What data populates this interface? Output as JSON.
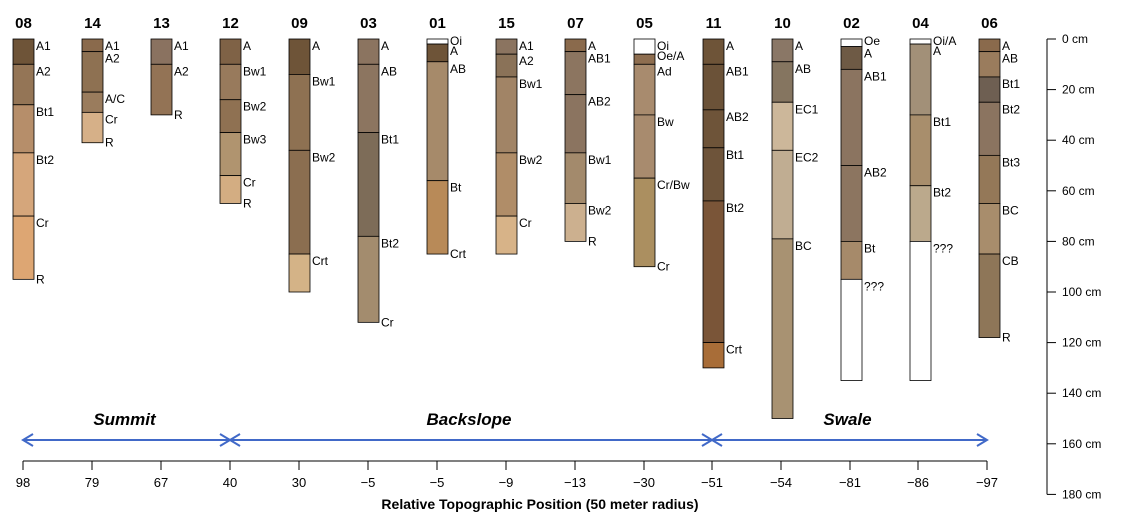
{
  "depth_axis": {
    "unit": "cm",
    "ticks": [
      {
        "value": 0,
        "label": "0 cm"
      },
      {
        "value": 20,
        "label": "20 cm"
      },
      {
        "value": 40,
        "label": "40 cm"
      },
      {
        "value": 60,
        "label": "60 cm"
      },
      {
        "value": 80,
        "label": "80 cm"
      },
      {
        "value": 100,
        "label": "100 cm"
      },
      {
        "value": 120,
        "label": "120 cm"
      },
      {
        "value": 140,
        "label": "140 cm"
      },
      {
        "value": 160,
        "label": "160 cm"
      },
      {
        "value": 180,
        "label": "180 cm"
      }
    ]
  },
  "x_axis": {
    "label": "Relative Topographic Position (50 meter radius)",
    "ticks": [
      "98",
      "79",
      "67",
      "40",
      "30",
      "−5",
      "−5",
      "−9",
      "−13",
      "−30",
      "−51",
      "−54",
      "−81",
      "−86",
      "−97"
    ]
  },
  "zones": [
    {
      "label": "Summit",
      "from": 0,
      "to": 3
    },
    {
      "label": "Backslope",
      "from": 3,
      "to": 10
    },
    {
      "label": "Swale",
      "from": 10,
      "to": 14
    }
  ],
  "colors": {
    "arrow": "#4169c8",
    "outline": "#000000"
  },
  "profiles": [
    {
      "id": "08",
      "bottom_label": "R",
      "horizons": [
        {
          "name": "A1",
          "top": 0,
          "bottom": 10,
          "color": "#6e5438"
        },
        {
          "name": "A2",
          "top": 10,
          "bottom": 26,
          "color": "#947556"
        },
        {
          "name": "Bt1",
          "top": 26,
          "bottom": 45,
          "color": "#b68e6a"
        },
        {
          "name": "Bt2",
          "top": 45,
          "bottom": 70,
          "color": "#d5a67b"
        },
        {
          "name": "Cr",
          "top": 70,
          "bottom": 95,
          "color": "#dda673"
        }
      ]
    },
    {
      "id": "14",
      "bottom_label": "R",
      "horizons": [
        {
          "name": "A1",
          "top": 0,
          "bottom": 5,
          "color": "#8a6a4c"
        },
        {
          "name": "A2",
          "top": 5,
          "bottom": 21,
          "color": "#8e7152"
        },
        {
          "name": "A/C",
          "top": 21,
          "bottom": 29,
          "color": "#9a7c5d"
        },
        {
          "name": "Cr",
          "top": 29,
          "bottom": 41,
          "color": "#d6b088"
        }
      ]
    },
    {
      "id": "13",
      "bottom_label": "R",
      "horizons": [
        {
          "name": "A1",
          "top": 0,
          "bottom": 10,
          "color": "#8a7260"
        },
        {
          "name": "A2",
          "top": 10,
          "bottom": 30,
          "color": "#937355"
        }
      ]
    },
    {
      "id": "12",
      "bottom_label": "R",
      "horizons": [
        {
          "name": "A",
          "top": 0,
          "bottom": 10,
          "color": "#7f6246"
        },
        {
          "name": "Bw1",
          "top": 10,
          "bottom": 24,
          "color": "#987a5c"
        },
        {
          "name": "Bw2",
          "top": 24,
          "bottom": 37,
          "color": "#8f7152"
        },
        {
          "name": "Bw3",
          "top": 37,
          "bottom": 54,
          "color": "#b0946f"
        },
        {
          "name": "Cr",
          "top": 54,
          "bottom": 65,
          "color": "#d3ad82"
        }
      ]
    },
    {
      "id": "09",
      "bottom_label": "",
      "horizons": [
        {
          "name": "A",
          "top": 0,
          "bottom": 14,
          "color": "#6e5438"
        },
        {
          "name": "Bw1",
          "top": 14,
          "bottom": 44,
          "color": "#8e7152"
        },
        {
          "name": "Bw2",
          "top": 44,
          "bottom": 85,
          "color": "#8b6e50"
        },
        {
          "name": "Crt",
          "top": 85,
          "bottom": 100,
          "color": "#d4b387"
        }
      ]
    },
    {
      "id": "03",
      "bottom_label": "Cr",
      "horizons": [
        {
          "name": "A",
          "top": 0,
          "bottom": 10,
          "color": "#8b7460"
        },
        {
          "name": "AB",
          "top": 10,
          "bottom": 37,
          "color": "#8c7560"
        },
        {
          "name": "Bt1",
          "top": 37,
          "bottom": 78,
          "color": "#7d6c58"
        },
        {
          "name": "Bt2",
          "top": 78,
          "bottom": 112,
          "color": "#a38c6e"
        }
      ]
    },
    {
      "id": "01",
      "bottom_label": "Crt",
      "horizons": [
        {
          "name": "Oi",
          "top": 0,
          "bottom": 2,
          "color": "#ffffff"
        },
        {
          "name": "A",
          "top": 2,
          "bottom": 9,
          "color": "#6e5438"
        },
        {
          "name": "AB",
          "top": 9,
          "bottom": 56,
          "color": "#a68a6a"
        },
        {
          "name": "Bt",
          "top": 56,
          "bottom": 85,
          "color": "#b88a58"
        }
      ]
    },
    {
      "id": "15",
      "bottom_label": "",
      "horizons": [
        {
          "name": "A1",
          "top": 0,
          "bottom": 6,
          "color": "#8b7460"
        },
        {
          "name": "A2",
          "top": 6,
          "bottom": 15,
          "color": "#8a7258"
        },
        {
          "name": "Bw1",
          "top": 15,
          "bottom": 45,
          "color": "#a18466"
        },
        {
          "name": "Bw2",
          "top": 45,
          "bottom": 70,
          "color": "#b08d68"
        },
        {
          "name": "Cr",
          "top": 70,
          "bottom": 85,
          "color": "#d7b388"
        }
      ]
    },
    {
      "id": "07",
      "bottom_label": "R",
      "horizons": [
        {
          "name": "A",
          "top": 0,
          "bottom": 5,
          "color": "#8a6a4c"
        },
        {
          "name": "AB1",
          "top": 5,
          "bottom": 22,
          "color": "#8c7560"
        },
        {
          "name": "AB2",
          "top": 22,
          "bottom": 45,
          "color": "#8b7460"
        },
        {
          "name": "Bw1",
          "top": 45,
          "bottom": 65,
          "color": "#a38a6c"
        },
        {
          "name": "Bw2",
          "top": 65,
          "bottom": 80,
          "color": "#ccb08f"
        }
      ]
    },
    {
      "id": "05",
      "bottom_label": "Cr",
      "horizons": [
        {
          "name": "Oi",
          "top": 0,
          "bottom": 6,
          "color": "#ffffff"
        },
        {
          "name": "Oe/A",
          "top": 6,
          "bottom": 10,
          "color": "#8e6e50"
        },
        {
          "name": "Ad",
          "top": 10,
          "bottom": 30,
          "color": "#a88b6e"
        },
        {
          "name": "Bw",
          "top": 30,
          "bottom": 55,
          "color": "#a88b6e"
        },
        {
          "name": "Cr/Bw",
          "top": 55,
          "bottom": 90,
          "color": "#ab8f60"
        }
      ]
    },
    {
      "id": "11",
      "bottom_label": "",
      "horizons": [
        {
          "name": "A",
          "top": 0,
          "bottom": 10,
          "color": "#6e5438"
        },
        {
          "name": "AB1",
          "top": 10,
          "bottom": 28,
          "color": "#6b5238"
        },
        {
          "name": "AB2",
          "top": 28,
          "bottom": 43,
          "color": "#6e5439"
        },
        {
          "name": "Bt1",
          "top": 43,
          "bottom": 64,
          "color": "#6e543a"
        },
        {
          "name": "Bt2",
          "top": 64,
          "bottom": 120,
          "color": "#7a5538"
        },
        {
          "name": "Crt",
          "top": 120,
          "bottom": 130,
          "color": "#a86d38"
        }
      ]
    },
    {
      "id": "10",
      "bottom_label": "",
      "horizons": [
        {
          "name": "A",
          "top": 0,
          "bottom": 9,
          "color": "#8a7766"
        },
        {
          "name": "AB",
          "top": 9,
          "bottom": 25,
          "color": "#857560"
        },
        {
          "name": "EC1",
          "top": 25,
          "bottom": 44,
          "color": "#ccb79a"
        },
        {
          "name": "EC2",
          "top": 44,
          "bottom": 79,
          "color": "#c0ad92"
        },
        {
          "name": "BC",
          "top": 79,
          "bottom": 150,
          "color": "#a89272"
        }
      ]
    },
    {
      "id": "02",
      "bottom_label": "",
      "horizons": [
        {
          "name": "Oe",
          "top": 0,
          "bottom": 3,
          "color": "#ffffff"
        },
        {
          "name": "A",
          "top": 3,
          "bottom": 12,
          "color": "#6e5a45"
        },
        {
          "name": "AB1",
          "top": 12,
          "bottom": 50,
          "color": "#8b7460"
        },
        {
          "name": "AB2",
          "top": 50,
          "bottom": 80,
          "color": "#8c7560"
        },
        {
          "name": "Bt",
          "top": 80,
          "bottom": 95,
          "color": "#a68a6a"
        },
        {
          "name": "???",
          "top": 95,
          "bottom": 135,
          "color": "#ffffff"
        }
      ]
    },
    {
      "id": "04",
      "bottom_label": "",
      "horizons": [
        {
          "name": "Oi/A",
          "top": 0,
          "bottom": 2,
          "color": "#ffffff"
        },
        {
          "name": "A",
          "top": 2,
          "bottom": 30,
          "color": "#a29078"
        },
        {
          "name": "Bt1",
          "top": 30,
          "bottom": 58,
          "color": "#a88e6c"
        },
        {
          "name": "Bt2",
          "top": 58,
          "bottom": 80,
          "color": "#bba98c"
        },
        {
          "name": "???",
          "top": 80,
          "bottom": 135,
          "color": "#ffffff"
        }
      ]
    },
    {
      "id": "06",
      "bottom_label": "R",
      "horizons": [
        {
          "name": "A",
          "top": 0,
          "bottom": 5,
          "color": "#8a6a4c"
        },
        {
          "name": "AB",
          "top": 5,
          "bottom": 15,
          "color": "#9a7c5d"
        },
        {
          "name": "Bt1",
          "top": 15,
          "bottom": 25,
          "color": "#6e5f52"
        },
        {
          "name": "Bt2",
          "top": 25,
          "bottom": 46,
          "color": "#8b7460"
        },
        {
          "name": "Bt3",
          "top": 46,
          "bottom": 65,
          "color": "#947858"
        },
        {
          "name": "BC",
          "top": 65,
          "bottom": 85,
          "color": "#a88d6c"
        },
        {
          "name": "CB",
          "top": 85,
          "bottom": 118,
          "color": "#8e7658"
        }
      ]
    }
  ]
}
